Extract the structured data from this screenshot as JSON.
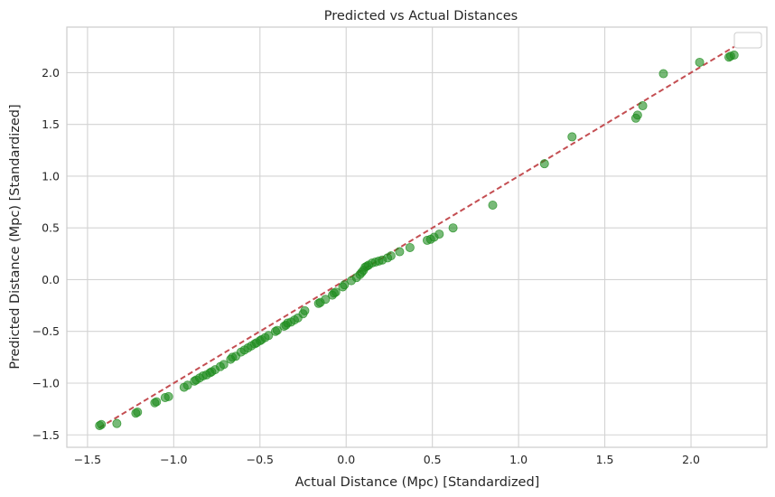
{
  "chart_data": {
    "type": "scatter",
    "title": "Predicted vs Actual Distances",
    "xlabel": "Actual Distance (Mpc) [Standardized]",
    "ylabel": "Predicted Distance (Mpc) [Standardized]",
    "xlim": [
      -1.62,
      2.44
    ],
    "ylim": [
      -1.62,
      2.44
    ],
    "xticks": [
      "-1.5",
      "-1.0",
      "-0.5",
      "0.0",
      "0.5",
      "1.0",
      "1.5",
      "2.0"
    ],
    "yticks": [
      "-1.5",
      "-1.0",
      "-0.5",
      "0.0",
      "0.5",
      "1.0",
      "1.5",
      "2.0"
    ],
    "grid": true,
    "legend": "top-right (empty)",
    "point_color": "#1e8c1e",
    "reference_line_color": "#c44e52",
    "reference_line": {
      "x": [
        -1.43,
        2.25
      ],
      "y": [
        -1.43,
        2.25
      ]
    },
    "points": [
      [
        -1.43,
        -1.41
      ],
      [
        -1.42,
        -1.4
      ],
      [
        -1.33,
        -1.39
      ],
      [
        -1.22,
        -1.29
      ],
      [
        -1.21,
        -1.28
      ],
      [
        -1.11,
        -1.19
      ],
      [
        -1.1,
        -1.18
      ],
      [
        -1.05,
        -1.14
      ],
      [
        -1.03,
        -1.13
      ],
      [
        -0.94,
        -1.04
      ],
      [
        -0.92,
        -1.02
      ],
      [
        -0.88,
        -0.98
      ],
      [
        -0.87,
        -0.97
      ],
      [
        -0.85,
        -0.95
      ],
      [
        -0.83,
        -0.93
      ],
      [
        -0.81,
        -0.92
      ],
      [
        -0.79,
        -0.9
      ],
      [
        -0.78,
        -0.89
      ],
      [
        -0.76,
        -0.87
      ],
      [
        -0.73,
        -0.84
      ],
      [
        -0.71,
        -0.82
      ],
      [
        -0.67,
        -0.77
      ],
      [
        -0.66,
        -0.75
      ],
      [
        -0.64,
        -0.74
      ],
      [
        -0.61,
        -0.7
      ],
      [
        -0.59,
        -0.68
      ],
      [
        -0.57,
        -0.66
      ],
      [
        -0.55,
        -0.64
      ],
      [
        -0.53,
        -0.62
      ],
      [
        -0.52,
        -0.61
      ],
      [
        -0.5,
        -0.59
      ],
      [
        -0.49,
        -0.58
      ],
      [
        -0.47,
        -0.56
      ],
      [
        -0.45,
        -0.54
      ],
      [
        -0.41,
        -0.5
      ],
      [
        -0.4,
        -0.49
      ],
      [
        -0.36,
        -0.45
      ],
      [
        -0.35,
        -0.44
      ],
      [
        -0.34,
        -0.42
      ],
      [
        -0.32,
        -0.41
      ],
      [
        -0.3,
        -0.39
      ],
      [
        -0.28,
        -0.37
      ],
      [
        -0.25,
        -0.33
      ],
      [
        -0.24,
        -0.3
      ],
      [
        -0.16,
        -0.23
      ],
      [
        -0.15,
        -0.22
      ],
      [
        -0.12,
        -0.19
      ],
      [
        -0.08,
        -0.15
      ],
      [
        -0.07,
        -0.13
      ],
      [
        -0.06,
        -0.12
      ],
      [
        -0.02,
        -0.07
      ],
      [
        -0.01,
        -0.05
      ],
      [
        0.03,
        -0.01
      ],
      [
        0.06,
        0.02
      ],
      [
        0.08,
        0.05
      ],
      [
        0.09,
        0.07
      ],
      [
        0.1,
        0.09
      ],
      [
        0.11,
        0.12
      ],
      [
        0.12,
        0.13
      ],
      [
        0.13,
        0.14
      ],
      [
        0.15,
        0.16
      ],
      [
        0.17,
        0.17
      ],
      [
        0.19,
        0.18
      ],
      [
        0.21,
        0.19
      ],
      [
        0.24,
        0.21
      ],
      [
        0.26,
        0.23
      ],
      [
        0.31,
        0.27
      ],
      [
        0.37,
        0.31
      ],
      [
        0.47,
        0.38
      ],
      [
        0.49,
        0.39
      ],
      [
        0.51,
        0.41
      ],
      [
        0.54,
        0.44
      ],
      [
        0.62,
        0.5
      ],
      [
        0.85,
        0.72
      ],
      [
        1.15,
        1.12
      ],
      [
        1.31,
        1.38
      ],
      [
        1.68,
        1.56
      ],
      [
        1.69,
        1.59
      ],
      [
        1.72,
        1.68
      ],
      [
        1.84,
        1.99
      ],
      [
        2.05,
        2.1
      ],
      [
        2.22,
        2.15
      ],
      [
        2.23,
        2.16
      ],
      [
        2.25,
        2.17
      ]
    ]
  }
}
